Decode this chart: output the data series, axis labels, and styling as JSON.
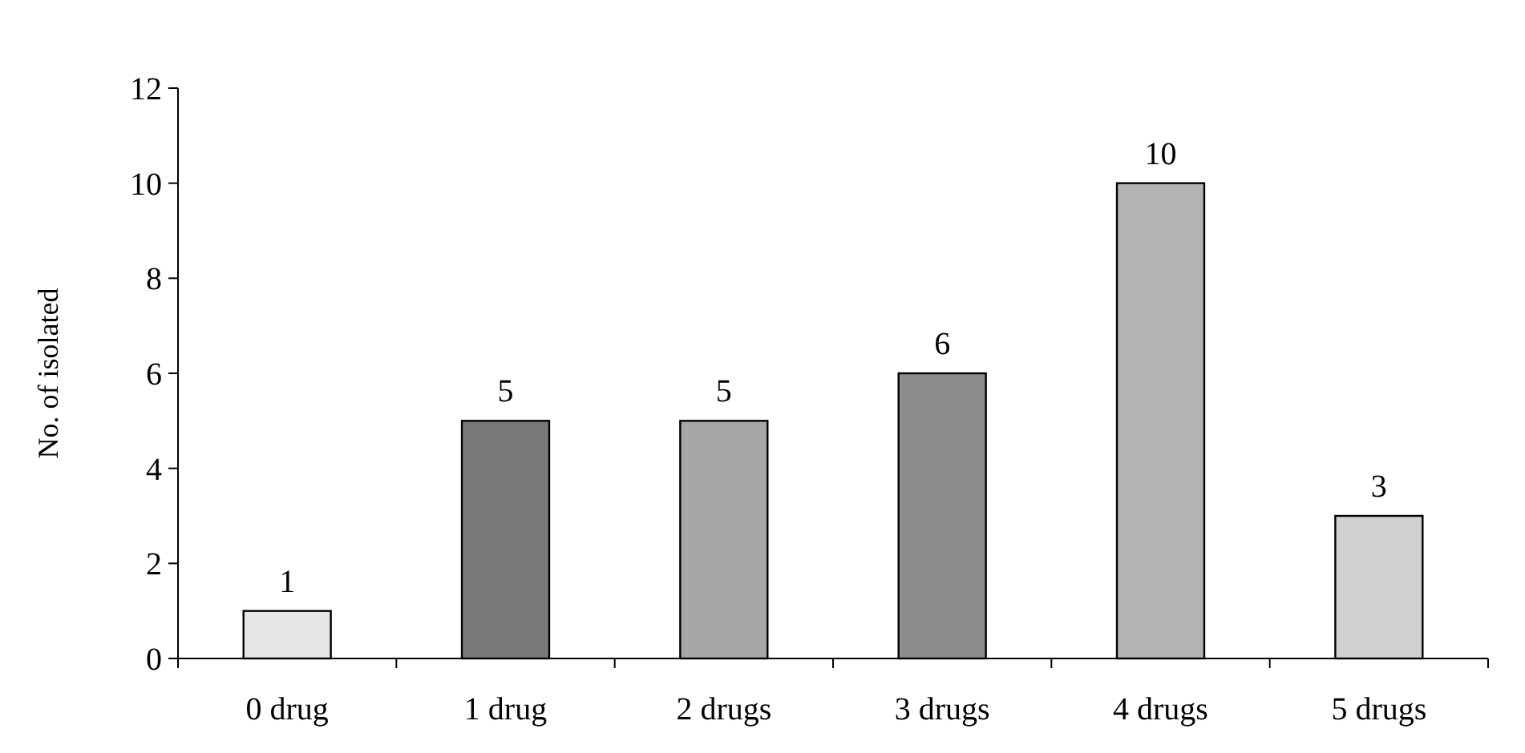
{
  "chart_data": {
    "type": "bar",
    "ylabel": "No. of isolated",
    "categories": [
      "0 drug",
      "1 drug",
      "2 drugs",
      "3 drugs",
      "4 drugs",
      "5 drugs"
    ],
    "values": [
      1,
      5,
      5,
      6,
      10,
      3
    ],
    "colors": [
      "#e6e6e6",
      "#7a7a7a",
      "#a6a6a6",
      "#8c8c8c",
      "#b3b3b3",
      "#d0d0d0"
    ],
    "ylim": [
      0,
      12
    ],
    "yticks": [
      0,
      2,
      4,
      6,
      8,
      10,
      12
    ],
    "data_labels": true,
    "grid": false
  }
}
